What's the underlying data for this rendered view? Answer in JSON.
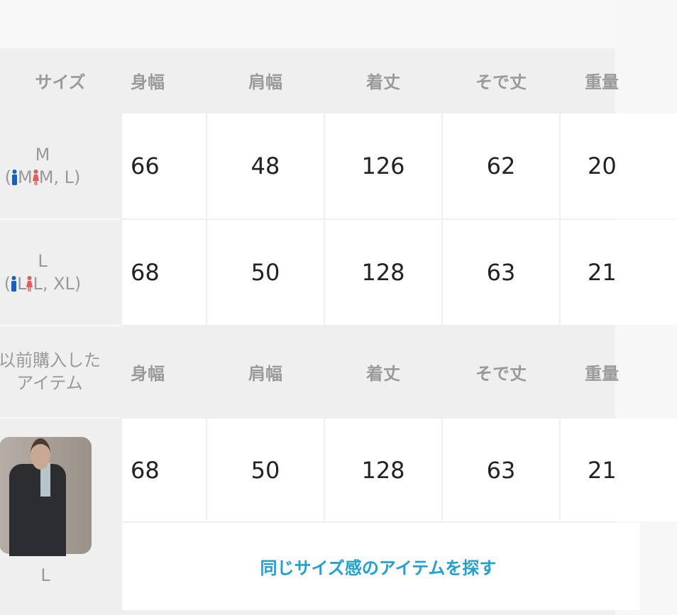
{
  "headers": {
    "size": "サイズ",
    "cols": [
      "身幅",
      "肩幅",
      "着丈",
      "そで丈",
      "重量"
    ]
  },
  "rows": [
    {
      "size": "M",
      "equiv_open": "(",
      "male_size": "M",
      "female_size": "M, L",
      "equiv_close": ")",
      "values": [
        "66",
        "48",
        "126",
        "62",
        "20"
      ]
    },
    {
      "size": "L",
      "equiv_open": "(",
      "male_size": "L",
      "female_size": "L, XL",
      "equiv_close": ")",
      "values": [
        "68",
        "50",
        "128",
        "63",
        "21"
      ]
    }
  ],
  "purchased": {
    "label_line1": "以前購入した",
    "label_line2": "アイテム",
    "cols": [
      "身幅",
      "肩幅",
      "着丈",
      "そで丈",
      "重量"
    ],
    "size": "L",
    "values": [
      "68",
      "50",
      "128",
      "63",
      "21"
    ]
  },
  "link_label": "同じサイズ感のアイテムを探す",
  "icons": {
    "male": "male-figure-icon",
    "female": "female-figure-icon"
  },
  "colors": {
    "male": "#1560c8",
    "female": "#e85a5a",
    "link": "#1f9fd8"
  }
}
